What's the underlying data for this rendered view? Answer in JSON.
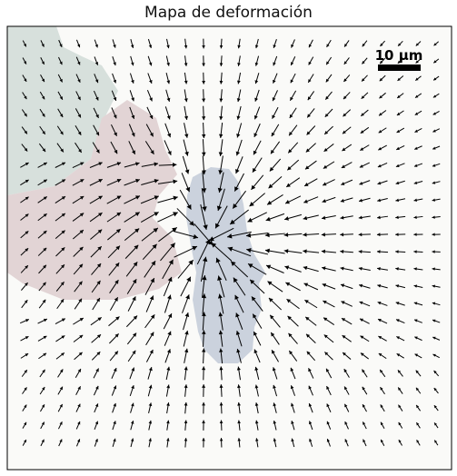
{
  "chart_data": {
    "type": "quiver",
    "title": "Mapa de deformación",
    "xlabel": "",
    "ylabel": "",
    "grid": false,
    "axes_ticks": false,
    "scale_bar": {
      "label": "10 µm",
      "position": "top-right"
    },
    "vector_grid": {
      "columns": 24,
      "rows": 24
    },
    "colors": {
      "background": "#fafaf8",
      "region_green": "#d7e0dc",
      "region_pink": "#e2d4d5",
      "region_blue": "#cbd2dd",
      "arrow": "#000000",
      "frame": "#000000"
    },
    "regions": [
      {
        "name": "region-green",
        "color": "#d7e0dc"
      },
      {
        "name": "region-pink",
        "color": "#e2d4d5"
      },
      {
        "name": "region-blue",
        "color": "#cbd2dd"
      }
    ]
  }
}
